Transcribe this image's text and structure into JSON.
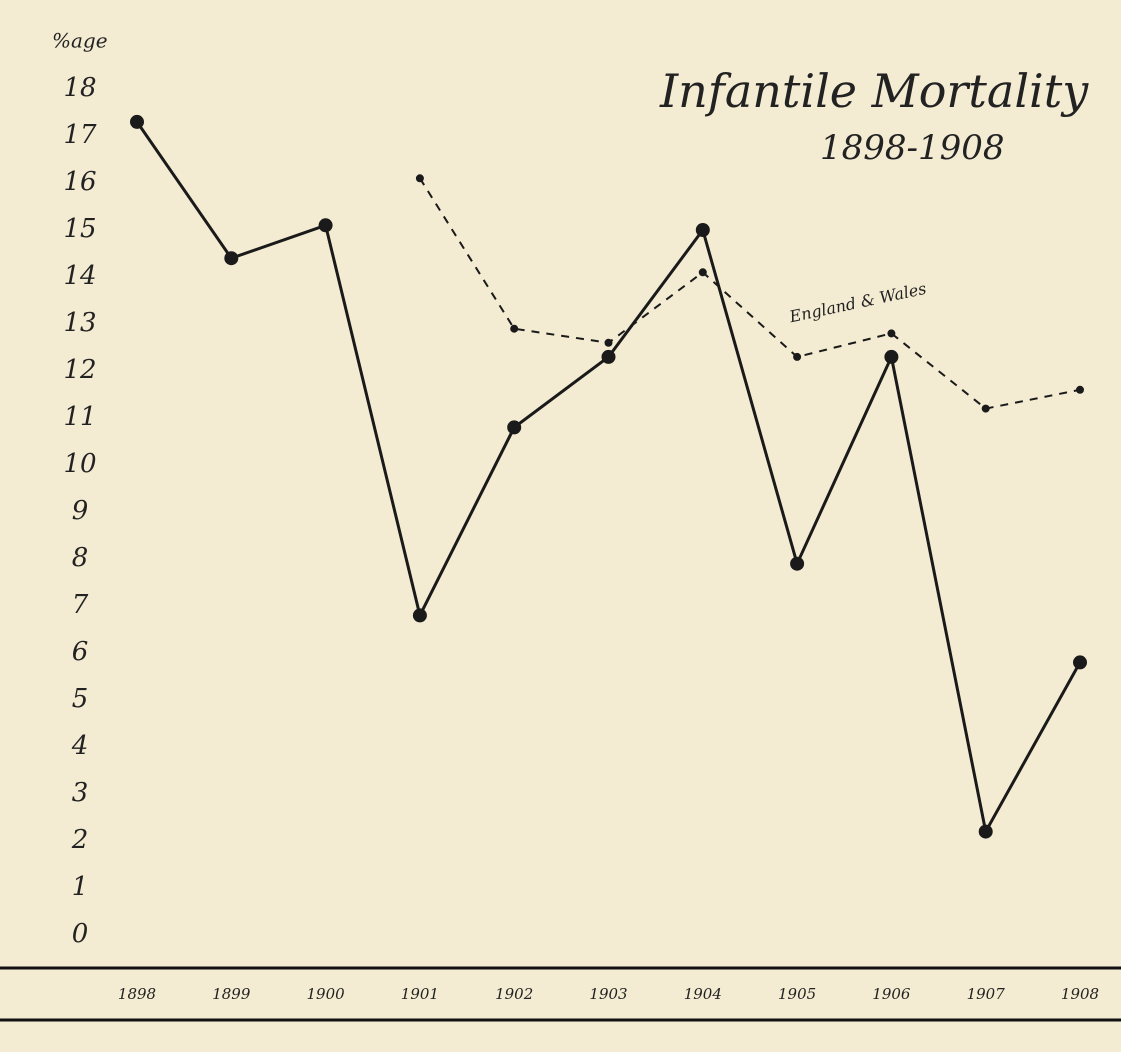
{
  "chart_data": {
    "type": "line",
    "title": "Infantile Mortality",
    "subtitle": "1898-1908",
    "y_label": "%age",
    "categories": [
      "1898",
      "1899",
      "1900",
      "1901",
      "1902",
      "1903",
      "1904",
      "1905",
      "1906",
      "1907",
      "1908"
    ],
    "series": [
      {
        "color": "#1a1a1a",
        "style": "solid",
        "values": [
          17.3,
          14.4,
          15.1,
          6.8,
          10.8,
          12.3,
          15.0,
          7.9,
          12.3,
          2.2,
          5.8
        ]
      },
      {
        "name": "England & Wales",
        "color": "#1a1a1a",
        "style": "dashed",
        "values": [
          null,
          null,
          null,
          16.1,
          12.9,
          12.6,
          14.1,
          12.3,
          12.8,
          11.2,
          11.6
        ]
      }
    ],
    "ylim": [
      0,
      18
    ],
    "yticks": [
      0,
      1,
      2,
      3,
      4,
      5,
      6,
      7,
      8,
      9,
      10,
      11,
      12,
      13,
      14,
      15,
      16,
      17,
      18
    ]
  }
}
